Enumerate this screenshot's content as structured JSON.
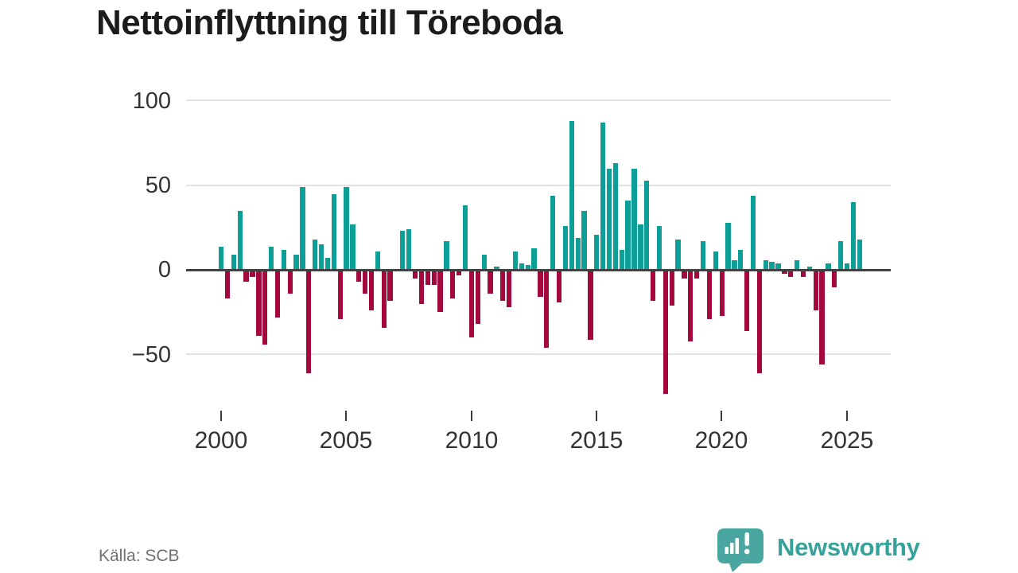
{
  "title": "Nettoinflyttning till Töreboda",
  "source": "Källa: SCB",
  "branding": {
    "name": "Newsworthy"
  },
  "colors": {
    "positive_bar": "#0d9e97",
    "negative_bar": "#a4093d",
    "gridline": "#e1e1e1",
    "zero_line": "#424242",
    "axis_text": "#333333",
    "source_text": "#707070",
    "brand_teal": "#4aa6a0"
  },
  "chart_data": {
    "type": "bar",
    "title": "Nettoinflyttning till Töreboda",
    "frequency": "quarterly",
    "period_start": "2000 Q1",
    "period_end": "2025 Q3",
    "x_tick_labels": [
      "2000",
      "2005",
      "2010",
      "2015",
      "2020",
      "2025"
    ],
    "y_tick_labels": [
      "100",
      "50",
      "0",
      "−50"
    ],
    "ylim": [
      -80,
      100
    ],
    "grid": "horizontal",
    "legend": "none",
    "positive_color": "#0d9e97",
    "negative_color": "#a4093d",
    "values": [
      14,
      -17,
      9,
      35,
      -7,
      -4,
      -39,
      -44,
      14,
      -28,
      12,
      -14,
      9,
      49,
      -61,
      18,
      15,
      7,
      45,
      -29,
      49,
      27,
      -7,
      -14,
      -24,
      11,
      -34,
      -18,
      0,
      23,
      24,
      -5,
      -20,
      -9,
      -9,
      -25,
      17,
      -17,
      -3,
      38,
      -40,
      -32,
      9,
      -14,
      2,
      -18,
      -22,
      11,
      4,
      3,
      13,
      -16,
      -46,
      44,
      -19,
      26,
      88,
      19,
      35,
      -41,
      21,
      87,
      60,
      63,
      12,
      41,
      60,
      27,
      53,
      -18,
      26,
      -73,
      -21,
      18,
      -5,
      -42,
      -5,
      17,
      -29,
      11,
      -27,
      28,
      6,
      12,
      -36,
      44,
      -61,
      6,
      5,
      4,
      -2,
      -4,
      6,
      -4,
      2,
      -24,
      -56,
      4,
      -10,
      17,
      4,
      40,
      18
    ]
  }
}
